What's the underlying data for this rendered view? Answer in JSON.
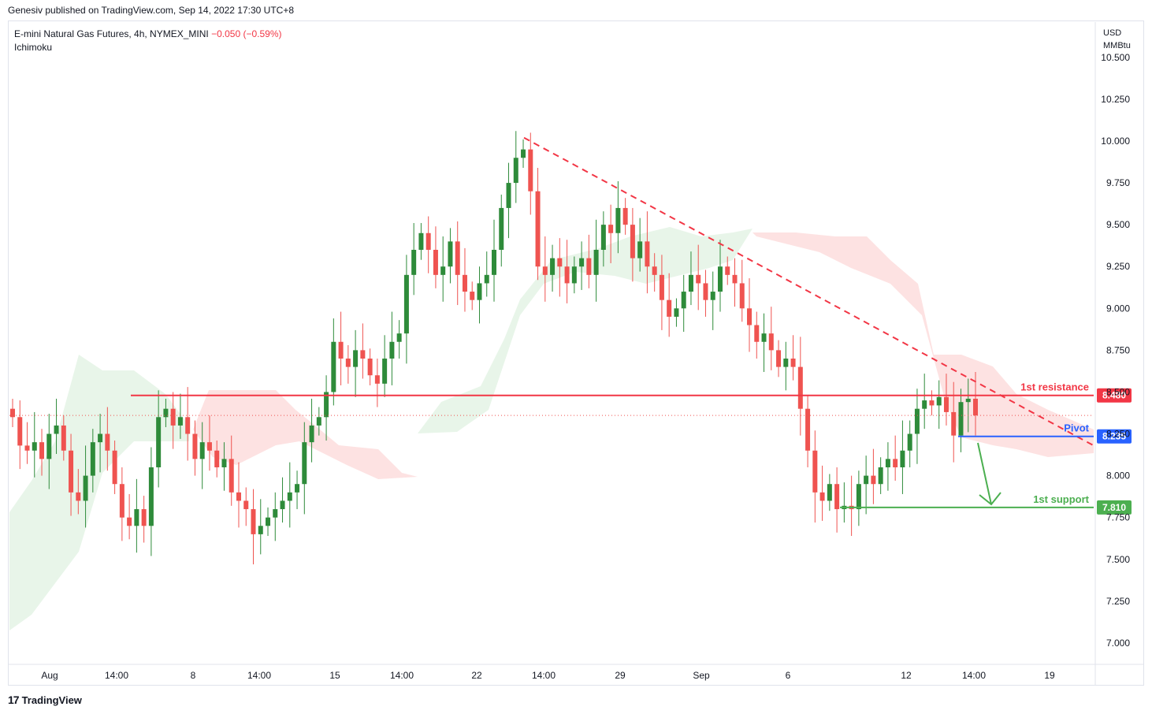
{
  "header": {
    "published": "Genesiv published on TradingView.com, Sep 14, 2022 17:30 UTC+8"
  },
  "legend": {
    "symbol": "E-mini Natural Gas Futures, 4h, NYMEX_MINI",
    "change": "−0.050 (−0.59%)",
    "indicator": "Ichimoku"
  },
  "axis": {
    "currency": "USD",
    "unit": "MMBtu"
  },
  "footer": {
    "brand": "TradingView"
  },
  "colors": {
    "up": "#2e8b3a",
    "down": "#ef5350",
    "resistance": "#f23645",
    "pivot": "#2962ff",
    "support": "#4caf50",
    "cloud_bull": "#e8f5e9",
    "cloud_bear": "#fde2e2"
  },
  "chart_data": {
    "type": "candlestick",
    "title": "",
    "ylim": [
      6.8,
      10.8
    ],
    "y_ticks": [
      7.0,
      7.25,
      7.5,
      7.75,
      8.0,
      8.25,
      8.5,
      8.75,
      9.0,
      9.25,
      9.5,
      9.75,
      10.0,
      10.25,
      10.5
    ],
    "y_tick_labels": [
      "7.000",
      "7.250",
      "7.500",
      "7.750",
      "8.000",
      "8.250",
      "8.500",
      "8.750",
      "9.000",
      "9.250",
      "9.500",
      "9.750",
      "10.000",
      "10.250",
      "10.500"
    ],
    "x_tick_labels": [
      "Aug",
      "14:00",
      "8",
      "14:00",
      "15",
      "14:00",
      "22",
      "14:00",
      "29",
      "Sep",
      "6",
      "12",
      "14:00",
      "19"
    ],
    "levels": [
      {
        "name": "1st resistance",
        "value": 8.48,
        "label": "8.480"
      },
      {
        "name": "Pivot",
        "value": 8.235,
        "label": "8.235"
      },
      {
        "name": "1st support",
        "value": 7.81,
        "label": "7.810"
      }
    ],
    "last_price": 8.36,
    "trendline": {
      "from": 10.02,
      "to": 8.18
    },
    "closes": [
      8.35,
      8.18,
      8.15,
      8.2,
      8.1,
      8.25,
      8.3,
      8.15,
      7.9,
      7.85,
      8.0,
      8.2,
      8.25,
      8.15,
      7.95,
      7.75,
      7.7,
      7.8,
      7.7,
      8.05,
      8.35,
      8.4,
      8.3,
      8.35,
      8.25,
      8.1,
      8.2,
      8.15,
      8.05,
      8.1,
      7.9,
      7.85,
      7.8,
      7.65,
      7.7,
      7.75,
      7.8,
      7.85,
      7.9,
      7.95,
      8.2,
      8.3,
      8.35,
      8.5,
      8.8,
      8.7,
      8.65,
      8.75,
      8.7,
      8.6,
      8.55,
      8.7,
      8.8,
      8.85,
      9.2,
      9.35,
      9.45,
      9.35,
      9.2,
      9.25,
      9.4,
      9.2,
      9.1,
      9.05,
      9.15,
      9.2,
      9.35,
      9.6,
      9.75,
      9.9,
      9.95,
      9.7,
      9.25,
      9.2,
      9.3,
      9.25,
      9.15,
      9.25,
      9.3,
      9.2,
      9.35,
      9.5,
      9.45,
      9.6,
      9.5,
      9.3,
      9.4,
      9.25,
      9.2,
      9.05,
      8.95,
      9.0,
      9.1,
      9.2,
      9.15,
      9.05,
      9.1,
      9.25,
      9.2,
      9.15,
      9.0,
      8.9,
      8.8,
      8.85,
      8.75,
      8.65,
      8.7,
      8.65,
      8.4,
      8.15,
      7.9,
      7.85,
      7.95,
      7.8,
      7.82,
      7.8,
      7.95,
      8.0,
      7.95,
      8.05,
      8.1,
      8.05,
      8.15,
      8.25,
      8.4,
      8.45,
      8.42,
      8.47,
      8.38,
      8.24,
      8.44,
      8.46,
      8.36
    ]
  }
}
